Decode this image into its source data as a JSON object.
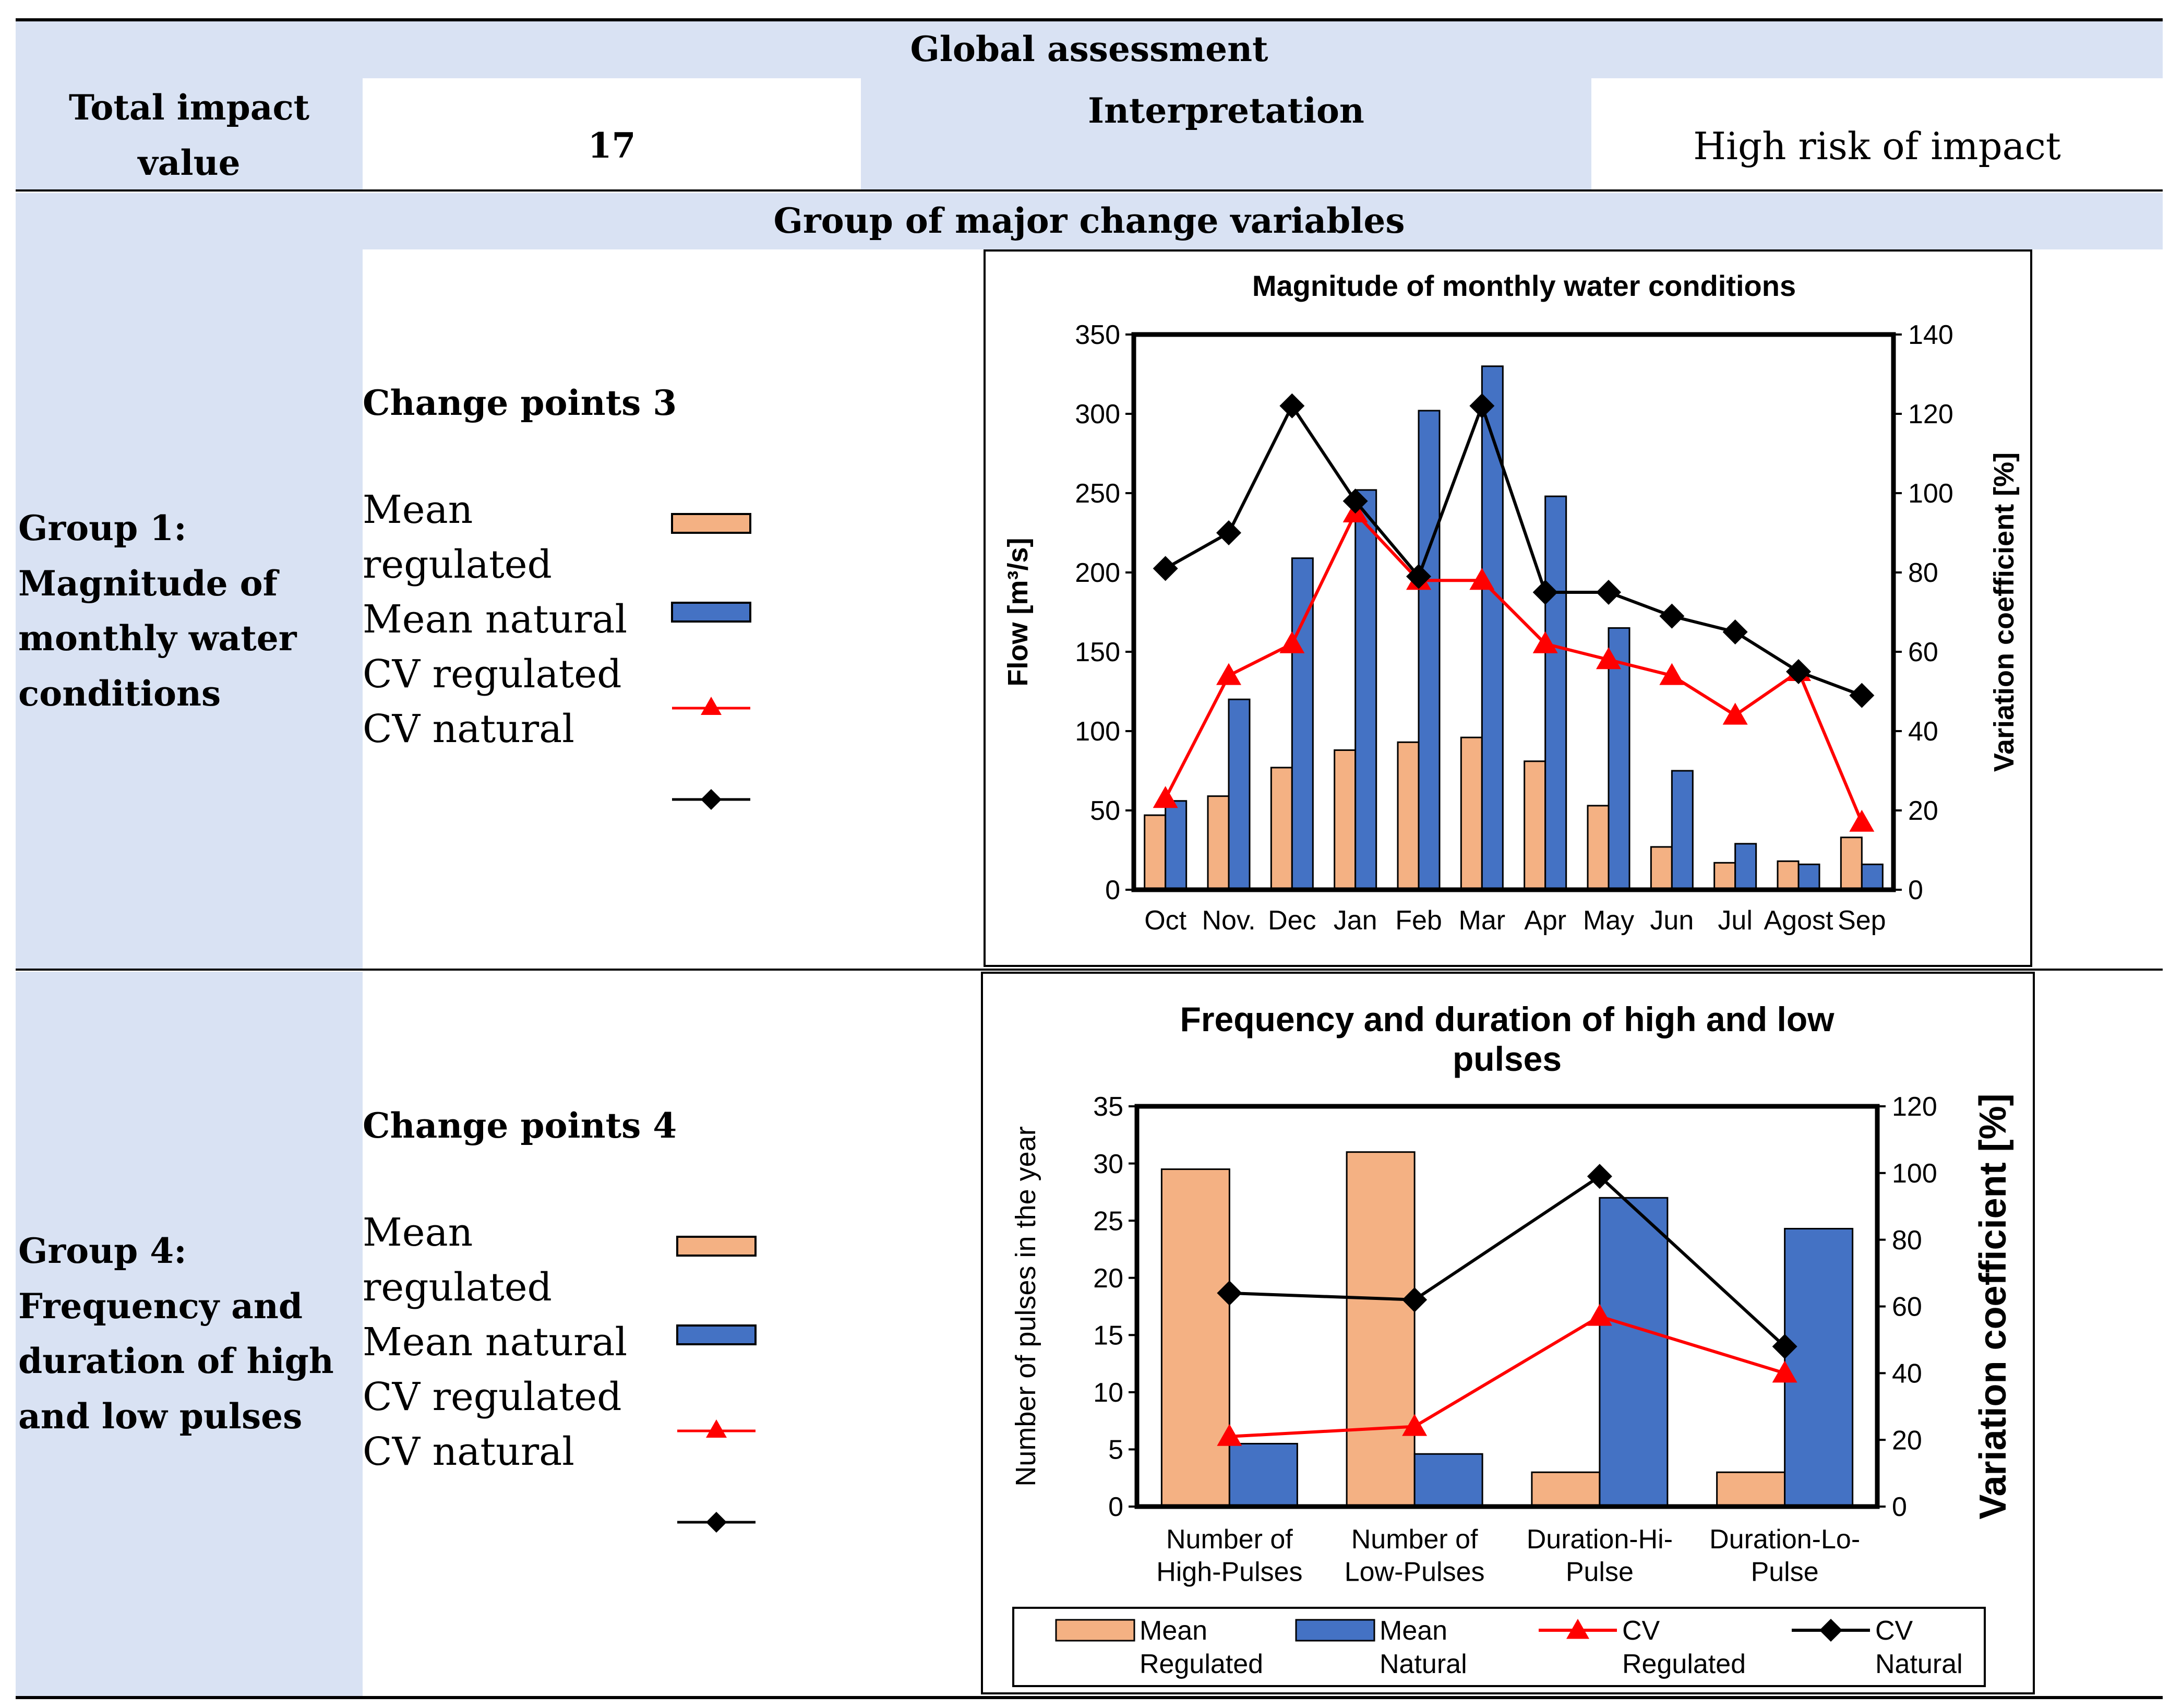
{
  "global": {
    "title": "Global assessment",
    "total_label": "Total impact value",
    "total_value": "17",
    "interp_label": "Interpretation",
    "interp_value": "High risk of impact"
  },
  "group_header": "Group of major change variables",
  "legend_items": {
    "mean_regulated": "Mean regulated",
    "mean_natural": "Mean natural",
    "cv_regulated": "CV regulated",
    "cv_natural": "CV natural"
  },
  "group1": {
    "label": "Group 1: Magnitude of monthly water conditions",
    "change_points": "Change points 3"
  },
  "group4": {
    "label": "Group 4: Frequency and duration of high and low pulses",
    "change_points": "Change points 4"
  },
  "colors": {
    "regulated": "#f4b183",
    "natural": "#4472c4",
    "cv_regulated": "#ff0000",
    "cv_natural": "#000000",
    "band": "#d9e2f3"
  },
  "chart_data": [
    {
      "type": "bar",
      "title": "Magnitude of monthly water conditions",
      "xlabel": "",
      "ylabel": "Flow [m³/s]",
      "y2label": "Variation coefficient [%]",
      "ylim": [
        0,
        350
      ],
      "y2lim": [
        0,
        140
      ],
      "yticks": [
        "0",
        "50",
        "100",
        "150",
        "200",
        "250",
        "300",
        "350"
      ],
      "y2ticks": [
        "0",
        "20",
        "40",
        "60",
        "80",
        "100",
        "120",
        "140"
      ],
      "categories": [
        "Oct",
        "Nov.",
        "Dec",
        "Jan",
        "Feb",
        "Mar",
        "Apr",
        "May",
        "Jun",
        "Jul",
        "Agost",
        "Sep"
      ],
      "series": [
        {
          "name": "Mean regulated",
          "kind": "bar",
          "axis": "left",
          "values": [
            47,
            59,
            77,
            88,
            93,
            96,
            81,
            53,
            27,
            17,
            18,
            33
          ]
        },
        {
          "name": "Mean natural",
          "kind": "bar",
          "axis": "left",
          "values": [
            56,
            120,
            209,
            252,
            302,
            330,
            248,
            165,
            75,
            29,
            16,
            16
          ]
        },
        {
          "name": "CV regulated",
          "kind": "line",
          "marker": "triangle",
          "axis": "right",
          "values": [
            23,
            54,
            62,
            95,
            78,
            78,
            62,
            58,
            54,
            44,
            55,
            17
          ]
        },
        {
          "name": "CV natural",
          "kind": "line",
          "marker": "diamond",
          "axis": "right",
          "values": [
            81,
            90,
            122,
            98,
            79,
            122,
            75,
            75,
            69,
            65,
            55,
            49
          ]
        }
      ]
    },
    {
      "type": "bar",
      "title": "Frequency and duration of high and low pulses",
      "xlabel": "",
      "ylabel": "Number of pulses in the year",
      "y2label": "Variation coefficient [%]",
      "ylim": [
        0,
        35
      ],
      "y2lim": [
        0,
        120
      ],
      "yticks": [
        "0",
        "5",
        "10",
        "15",
        "20",
        "25",
        "30",
        "35"
      ],
      "y2ticks": [
        "0",
        "20",
        "40",
        "60",
        "80",
        "100",
        "120"
      ],
      "categories": [
        [
          "Number of",
          "High-Pulses"
        ],
        [
          "Number of",
          "Low-Pulses"
        ],
        [
          "Duration-Hi-",
          "Pulse"
        ],
        [
          "Duration-Lo-",
          "Pulse"
        ]
      ],
      "series": [
        {
          "name": "Mean Regulated",
          "kind": "bar",
          "axis": "left",
          "values": [
            29.5,
            31,
            3,
            3
          ]
        },
        {
          "name": "Mean Natural",
          "kind": "bar",
          "axis": "left",
          "values": [
            5.5,
            4.6,
            27,
            24.3
          ]
        },
        {
          "name": "CV Regulated",
          "kind": "line",
          "marker": "triangle",
          "axis": "right",
          "values": [
            21,
            24,
            57,
            40
          ]
        },
        {
          "name": "CV Natural",
          "kind": "line",
          "marker": "diamond",
          "axis": "right",
          "values": [
            64,
            62,
            99,
            48
          ]
        }
      ],
      "legend": [
        [
          "Mean",
          "Regulated"
        ],
        [
          "Mean",
          "Natural"
        ],
        [
          "CV",
          "Regulated"
        ],
        [
          "CV",
          "Natural"
        ]
      ]
    }
  ]
}
